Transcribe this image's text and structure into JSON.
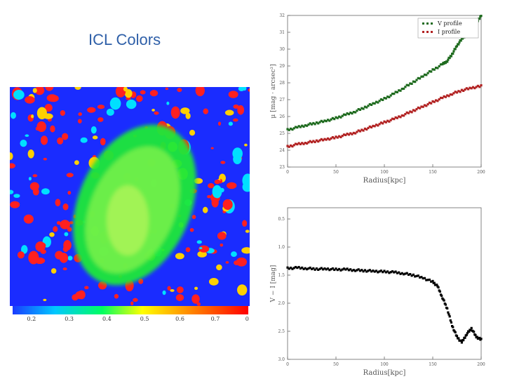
{
  "slide": {
    "title": "ICL Colors"
  },
  "colorbar": {
    "tick_labels": [
      "0.2",
      "0.3",
      "0.4",
      "0.5",
      "0.6",
      "0.7",
      "0"
    ],
    "colors": [
      "#1a3cff",
      "#00c8ff",
      "#00ff60",
      "#ffff00",
      "#ff8a00",
      "#ff0000"
    ]
  },
  "chart_data": [
    {
      "type": "scatter",
      "name": "surface-brightness-profiles",
      "xlabel": "Radius[kpc]",
      "ylabel": "μ [mag · arcsec²]",
      "xlim": [
        0,
        200
      ],
      "ylim": [
        32,
        23
      ],
      "x_ticks": [
        "0",
        "50",
        "100",
        "150",
        "200"
      ],
      "y_ticks": [
        "23",
        "24",
        "25",
        "26",
        "27",
        "28",
        "29",
        "30",
        "31",
        "32"
      ],
      "legend": {
        "placement": "top-right",
        "entries": [
          "V profile",
          "I profile"
        ]
      },
      "series": [
        {
          "name": "V profile",
          "color": "#1f6b1f",
          "x": [
            0,
            10,
            20,
            30,
            40,
            50,
            60,
            70,
            80,
            90,
            100,
            110,
            120,
            130,
            140,
            150,
            160,
            165,
            170,
            175,
            180,
            185,
            190,
            195,
            200
          ],
          "y": [
            25.2,
            25.35,
            25.5,
            25.62,
            25.75,
            25.9,
            26.1,
            26.3,
            26.55,
            26.8,
            27.05,
            27.35,
            27.7,
            28.05,
            28.4,
            28.75,
            29.1,
            29.3,
            29.7,
            30.2,
            30.6,
            30.9,
            31.2,
            31.5,
            32.0
          ]
        },
        {
          "name": "I profile",
          "color": "#b22222",
          "x": [
            0,
            10,
            20,
            30,
            40,
            50,
            60,
            70,
            80,
            90,
            100,
            110,
            120,
            130,
            140,
            150,
            160,
            170,
            180,
            190,
            200
          ],
          "y": [
            24.2,
            24.35,
            24.45,
            24.55,
            24.65,
            24.75,
            24.9,
            25.05,
            25.25,
            25.45,
            25.65,
            25.85,
            26.1,
            26.35,
            26.6,
            26.85,
            27.1,
            27.35,
            27.55,
            27.7,
            27.8
          ]
        }
      ]
    },
    {
      "type": "scatter",
      "name": "color-profile",
      "xlabel": "Radius[kpc]",
      "ylabel": "V − I [mag]",
      "xlim": [
        0,
        200
      ],
      "ylim": [
        0.3,
        3.0
      ],
      "x_ticks": [
        "0",
        "50",
        "100",
        "150",
        "200"
      ],
      "y_ticks": [
        "0.5",
        "1.0",
        "1.5",
        "2.0",
        "2.5",
        "3.0"
      ],
      "series": [
        {
          "name": "V − I",
          "color": "#000000",
          "x": [
            0,
            10,
            20,
            30,
            40,
            50,
            60,
            70,
            80,
            90,
            100,
            110,
            120,
            130,
            140,
            150,
            155,
            160,
            165,
            170,
            175,
            180,
            185,
            190,
            195,
            200
          ],
          "y": [
            1.38,
            1.37,
            1.38,
            1.39,
            1.39,
            1.4,
            1.4,
            1.41,
            1.42,
            1.43,
            1.44,
            1.45,
            1.47,
            1.5,
            1.55,
            1.62,
            1.7,
            1.9,
            2.1,
            2.4,
            2.6,
            2.7,
            2.55,
            2.45,
            2.6,
            2.65
          ]
        }
      ]
    }
  ]
}
